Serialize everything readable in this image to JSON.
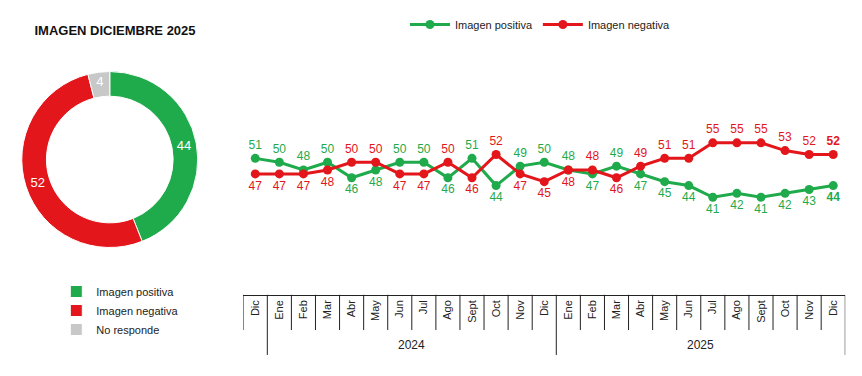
{
  "chart_data": [
    {
      "type": "pie",
      "title": "IMAGEN DICIEMBRE 2025",
      "categories": [
        "Imagen positiva",
        "Imagen negativa",
        "No responde"
      ],
      "values": [
        44,
        52,
        4
      ],
      "colors": [
        "#1faa4b",
        "#e3161b",
        "#c8c8c8"
      ],
      "data_labels": true,
      "legend": "bottom left"
    },
    {
      "type": "line",
      "categories": [
        "Dic",
        "Ene",
        "Feb",
        "Mar",
        "Abr",
        "May",
        "Jun",
        "Jul",
        "Ago",
        "Sept",
        "Oct",
        "Nov",
        "Dic",
        "Ene",
        "Feb",
        "Mar",
        "Abr",
        "May",
        "Jun",
        "Jul",
        "Ago",
        "Sept",
        "Oct",
        "Nov",
        "Dic"
      ],
      "groups": [
        {
          "label": "2024",
          "from": 1,
          "to": 12
        },
        {
          "label": "2025",
          "from": 13,
          "to": 24
        }
      ],
      "series": [
        {
          "name": "Imagen positiva",
          "color": "#1faa4b",
          "values": [
            51,
            50,
            48,
            50,
            46,
            48,
            50,
            50,
            46,
            51,
            44,
            49,
            50,
            48,
            47,
            49,
            47,
            45,
            44,
            41,
            42,
            41,
            42,
            43,
            44
          ]
        },
        {
          "name": "Imagen negativa",
          "color": "#e3161b",
          "values": [
            47,
            47,
            47,
            48,
            50,
            50,
            47,
            47,
            50,
            46,
            52,
            47,
            45,
            48,
            48,
            46,
            49,
            51,
            51,
            55,
            55,
            55,
            53,
            52,
            52
          ]
        }
      ],
      "ylim": [
        30,
        66
      ],
      "tick_labels": "x",
      "data_labels": true,
      "marker": "circle",
      "legend": "top"
    }
  ]
}
